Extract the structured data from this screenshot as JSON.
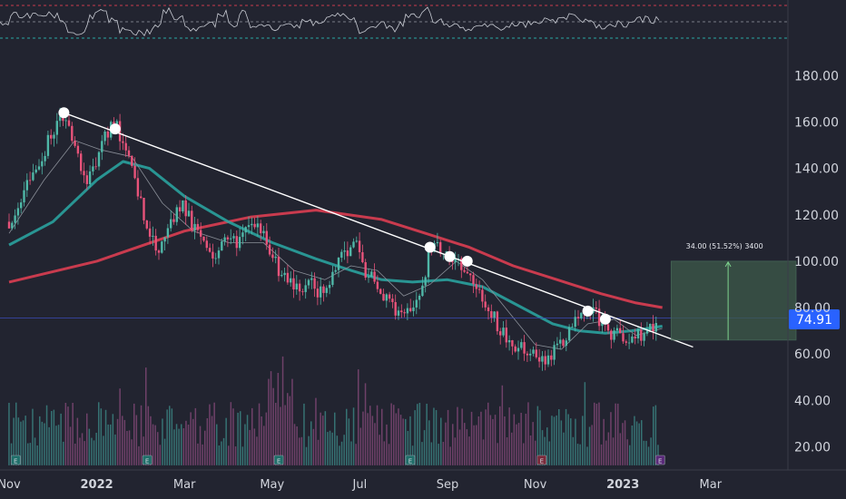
{
  "chart_data": {
    "type": "candlestick",
    "title": "",
    "xlabel": "",
    "ylabel": "",
    "ylim": [
      10,
      195
    ],
    "x_axis": {
      "labels": [
        "Nov",
        "2022",
        "Mar",
        "May",
        "Jul",
        "Sep",
        "Nov",
        "2023",
        "Mar"
      ],
      "bold": [
        false,
        true,
        false,
        false,
        false,
        false,
        false,
        true,
        false
      ],
      "months": [
        0,
        2,
        4,
        6,
        8,
        10,
        12,
        14,
        16
      ],
      "range_months": [
        0,
        19.4
      ]
    },
    "y_axis": {
      "ticks": [
        20,
        40,
        60,
        80,
        100,
        120,
        140,
        160,
        180
      ],
      "tick_labels": [
        "20.00",
        "40.00",
        "60.00",
        "80.00",
        "100.00",
        "120.00",
        "140.00",
        "160.00",
        "180.00"
      ]
    },
    "price_path": [
      [
        0,
        117
      ],
      [
        0.3,
        128
      ],
      [
        0.6,
        140
      ],
      [
        0.9,
        152
      ],
      [
        1.1,
        160
      ],
      [
        1.25,
        163
      ],
      [
        1.5,
        150
      ],
      [
        1.75,
        135
      ],
      [
        1.95,
        142
      ],
      [
        2.2,
        156
      ],
      [
        2.45,
        158
      ],
      [
        2.7,
        145
      ],
      [
        2.95,
        128
      ],
      [
        3.2,
        112
      ],
      [
        3.45,
        103
      ],
      [
        3.7,
        118
      ],
      [
        3.95,
        125
      ],
      [
        4.2,
        115
      ],
      [
        4.45,
        105
      ],
      [
        4.7,
        100
      ],
      [
        4.95,
        112
      ],
      [
        5.2,
        107
      ],
      [
        5.4,
        118
      ],
      [
        5.65,
        114
      ],
      [
        5.9,
        108
      ],
      [
        6.15,
        96
      ],
      [
        6.4,
        90
      ],
      [
        6.65,
        86
      ],
      [
        6.9,
        90
      ],
      [
        7.15,
        86
      ],
      [
        7.4,
        95
      ],
      [
        7.65,
        104
      ],
      [
        7.9,
        108
      ],
      [
        8.1,
        96
      ],
      [
        8.35,
        90
      ],
      [
        8.6,
        85
      ],
      [
        8.8,
        77
      ],
      [
        9.0,
        74
      ],
      [
        9.2,
        82
      ],
      [
        9.45,
        92
      ],
      [
        9.6,
        104
      ],
      [
        9.85,
        106
      ],
      [
        10.1,
        103
      ],
      [
        10.35,
        98
      ],
      [
        10.55,
        90
      ],
      [
        10.8,
        84
      ],
      [
        11.05,
        76
      ],
      [
        11.3,
        68
      ],
      [
        11.55,
        64
      ],
      [
        11.8,
        60
      ],
      [
        12.0,
        58
      ],
      [
        12.25,
        59
      ],
      [
        12.5,
        62
      ],
      [
        12.75,
        68
      ],
      [
        13.0,
        77
      ],
      [
        13.25,
        79
      ],
      [
        13.45,
        75
      ],
      [
        13.6,
        71
      ],
      [
        13.85,
        68
      ],
      [
        14.1,
        65
      ],
      [
        14.3,
        67
      ],
      [
        14.5,
        70
      ],
      [
        14.7,
        72
      ],
      [
        14.85,
        75.5
      ]
    ],
    "series": [
      {
        "name": "",
        "type": "moving-average-slow",
        "color": "#c93b4e",
        "points": [
          [
            0,
            91
          ],
          [
            2,
            100
          ],
          [
            4,
            113
          ],
          [
            5.5,
            119
          ],
          [
            7,
            122
          ],
          [
            8.5,
            118
          ],
          [
            9.5,
            112
          ],
          [
            10.5,
            106
          ],
          [
            11.5,
            98
          ],
          [
            12.5,
            92
          ],
          [
            13.5,
            86
          ],
          [
            14.3,
            82
          ],
          [
            14.9,
            80
          ]
        ]
      },
      {
        "name": "",
        "type": "moving-average-fast",
        "color": "#2aa9a5",
        "points": [
          [
            0,
            107
          ],
          [
            1,
            117
          ],
          [
            2,
            135
          ],
          [
            2.6,
            143
          ],
          [
            3.2,
            140
          ],
          [
            4,
            128
          ],
          [
            5,
            117
          ],
          [
            6,
            108
          ],
          [
            7,
            101
          ],
          [
            7.8,
            96
          ],
          [
            8.5,
            92
          ],
          [
            9.2,
            91
          ],
          [
            10,
            92
          ],
          [
            10.8,
            89
          ],
          [
            11.6,
            81
          ],
          [
            12.4,
            73
          ],
          [
            13,
            70
          ],
          [
            13.6,
            69
          ],
          [
            14.2,
            70
          ],
          [
            14.9,
            72
          ]
        ]
      },
      {
        "name": "",
        "type": "moving-average-short",
        "color": "#8a8f98",
        "points": [
          [
            0,
            112
          ],
          [
            0.8,
            135
          ],
          [
            1.5,
            152
          ],
          [
            2.1,
            148
          ],
          [
            2.8,
            145
          ],
          [
            3.5,
            125
          ],
          [
            4.2,
            113
          ],
          [
            5,
            108
          ],
          [
            5.8,
            108
          ],
          [
            6.5,
            96
          ],
          [
            7.2,
            92
          ],
          [
            7.8,
            98
          ],
          [
            8.4,
            96
          ],
          [
            9,
            85
          ],
          [
            9.6,
            90
          ],
          [
            10.2,
            100
          ],
          [
            10.8,
            92
          ],
          [
            11.4,
            78
          ],
          [
            12,
            64
          ],
          [
            12.6,
            62
          ],
          [
            13.2,
            73
          ],
          [
            13.8,
            75
          ],
          [
            14.3,
            68
          ],
          [
            14.9,
            71
          ]
        ]
      }
    ],
    "trendline": {
      "color": "#ffffff",
      "from": [
        1.25,
        164
      ],
      "to": [
        15.6,
        63
      ]
    },
    "touch_points": [
      [
        1.25,
        164
      ],
      [
        2.42,
        157
      ],
      [
        9.6,
        106
      ],
      [
        10.05,
        102
      ],
      [
        10.45,
        100
      ],
      [
        13.2,
        78.5
      ],
      [
        13.6,
        75
      ]
    ],
    "measure_box": {
      "x": [
        15.1,
        17.95
      ],
      "y": [
        66,
        100
      ],
      "fill": "#3d5a4a",
      "label": "34.00 (51.52%) 3400",
      "arrow_month": 16.4
    },
    "current_price": {
      "value": 74.91,
      "label": "74.91",
      "color": "#2962ff"
    },
    "reference_lines": [
      {
        "value": 75.5,
        "color": "#3b4bb8"
      }
    ],
    "volume_baseline": 12,
    "volume_height_scale": 16,
    "earnings_markers": {
      "months": [
        0.15,
        3.15,
        6.15,
        9.15,
        12.15,
        14.85
      ],
      "colors": [
        "#1f6f6a",
        "#1f6f6a",
        "#1f6f6a",
        "#1f6f6a",
        "#7a2a3a",
        "#5a2a7a"
      ],
      "label": "E"
    },
    "oscillator": {
      "color": "#c9ccd4",
      "upper_band_color": "#c93b4e",
      "lower_band_color": "#2aa9a5",
      "mid_band_color": "#787b86"
    }
  }
}
